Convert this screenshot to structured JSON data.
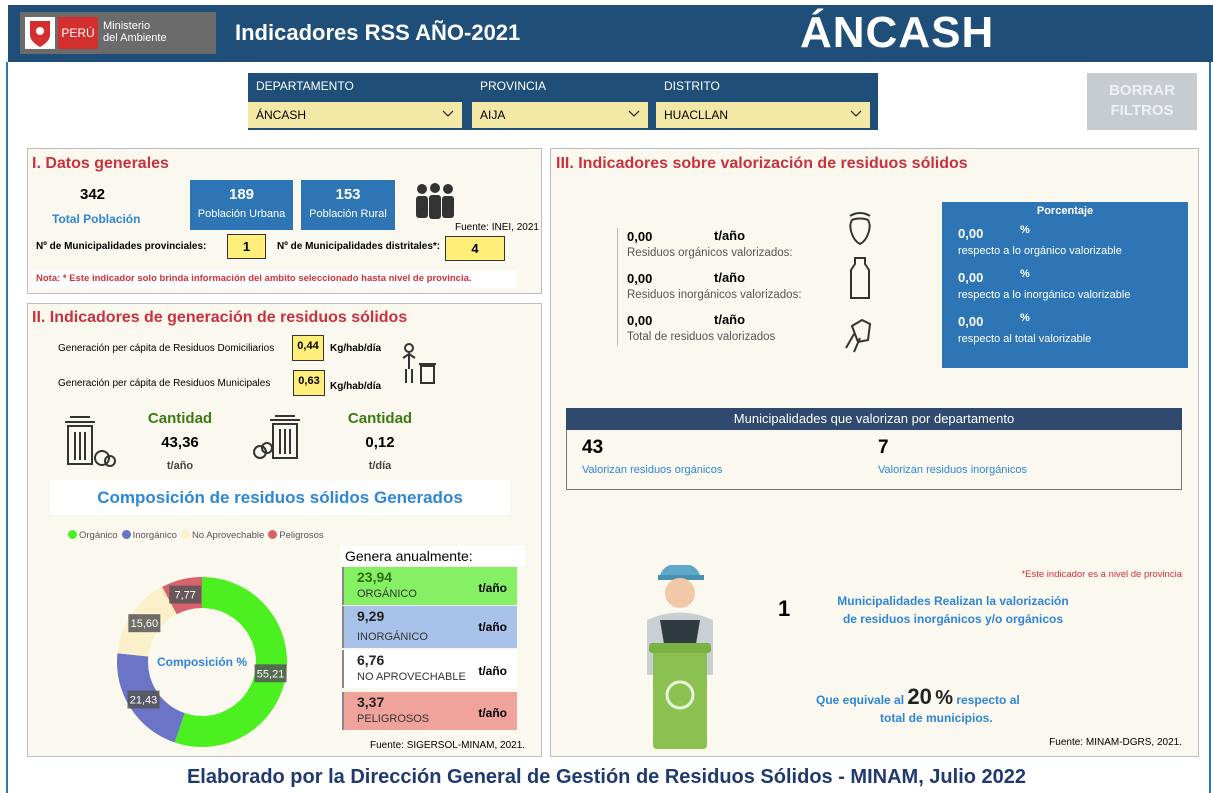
{
  "header": {
    "logo_country": "PERÚ",
    "logo_ministry": [
      "Ministerio",
      "del Ambiente"
    ],
    "title": "Indicadores RSS AÑO-2021",
    "region": "ÁNCASH"
  },
  "filters": {
    "items": [
      {
        "label": "DEPARTAMENTO",
        "value": "ÁNCASH"
      },
      {
        "label": "PROVINCIA",
        "value": "AIJA"
      },
      {
        "label": "DISTRITO",
        "value": "HUACLLAN"
      }
    ],
    "clear_button": [
      "BORRAR",
      "FILTROS"
    ]
  },
  "general": {
    "title": "I. Datos generales",
    "total_population": {
      "value": "342",
      "label": "Total Población"
    },
    "urban": {
      "value": "189",
      "label": "Población Urbana"
    },
    "rural": {
      "value": "153",
      "label": "Población Rural"
    },
    "source": "Fuente: INEI, 2021",
    "provincial": {
      "label": "Nº de Municipalidades provinciales:",
      "value": "1"
    },
    "district": {
      "label": "Nº de Municipalidades distritales*:",
      "value": "4"
    },
    "note": "Nota: * Este indicador solo brinda información del ambito seleccionado hasta nivel de provincia."
  },
  "generation": {
    "title": "II. Indicadores de generación de residuos sólidos",
    "per_capita": [
      {
        "label": "Generación per cápita de Residuos Domiciliarios",
        "value": "0,44",
        "unit": "Kg/hab/día"
      },
      {
        "label": "Generación per cápita de Residuos Municipales",
        "value": "0,63",
        "unit": "Kg/hab/día"
      }
    ],
    "quantities": [
      {
        "label": "Cantidad",
        "value": "43,36",
        "unit": "t/año"
      },
      {
        "label": "Cantidad",
        "value": "0,12",
        "unit": "t/día"
      }
    ],
    "composition_title": "Composición de residuos sólidos Generados",
    "composition": {
      "type": "pie",
      "center_label": "Composición %",
      "categories": [
        "Orgánico",
        "Inorgánico",
        "No Aprovechable",
        "Peligrosos"
      ],
      "values": [
        55.21,
        21.43,
        15.6,
        7.77
      ],
      "value_labels": [
        "55,21",
        "21,43",
        "15,60",
        "7,77"
      ],
      "colors": [
        "#4cf021",
        "#6b74c6",
        "#fbf0c9",
        "#d8636c"
      ]
    },
    "annual_title": "Genera anualmente:",
    "annual": [
      {
        "value": "23,94",
        "name": "ORGÁNICO",
        "unit": "t/año",
        "color": "#86f064"
      },
      {
        "value": "9,29",
        "name": "INORGÁNICO",
        "unit": "t/año",
        "color": "#a9c2ea"
      },
      {
        "value": "6,76",
        "name": "NO APROVECHABLE",
        "unit": "t/año",
        "color": "#ffffff"
      },
      {
        "value": "3,37",
        "name": "PELIGROSOS",
        "unit": "t/año",
        "color": "#f0a29c"
      }
    ],
    "source": "Fuente: SIGERSOL-MINAM, 2021."
  },
  "valorization": {
    "title": "III. Indicadores sobre valorización de residuos sólidos",
    "amounts": [
      {
        "value": "0,00",
        "unit": "t/año",
        "label": "Residuos orgánicos valorizados:"
      },
      {
        "value": "0,00",
        "unit": "t/año",
        "label": "Residuos inorgánicos valorizados:"
      },
      {
        "value": "0,00",
        "unit": "t/año",
        "label": "Total de residuos valorizados"
      }
    ],
    "percent_title": "Porcentaje",
    "percents": [
      {
        "value": "0,00",
        "unit": "%",
        "label": "respecto a lo orgánico valorizable"
      },
      {
        "value": "0,00",
        "unit": "%",
        "label": "respecto a lo inorgánico valorizable"
      },
      {
        "value": "0,00",
        "unit": "%",
        "label": "respecto al total valorizable"
      }
    ],
    "departments_title": "Municipalidades que valorizan por departamento",
    "departments": [
      {
        "value": "43",
        "label": "Valorizan residuos orgánicos"
      },
      {
        "value": "7",
        "label": "Valorizan residuos inorgánicos"
      }
    ],
    "province_note": "*Este indicador es a nivel de provincia",
    "municipalities": {
      "value": "1",
      "label": [
        "Municipalidades Realizan la valorización",
        "de residuos inorgánicos y/o orgánicos"
      ]
    },
    "equivalent": {
      "prefix": "Que equivale al",
      "value": "20",
      "unit": "%",
      "suffix": "respecto al",
      "line2": "total de municipios."
    },
    "source": "Fuente: MINAM-DGRS, 2021."
  },
  "footer": "Elaborado por la Dirección General de Gestión de Residuos Sólidos - MINAM, Julio 2022"
}
